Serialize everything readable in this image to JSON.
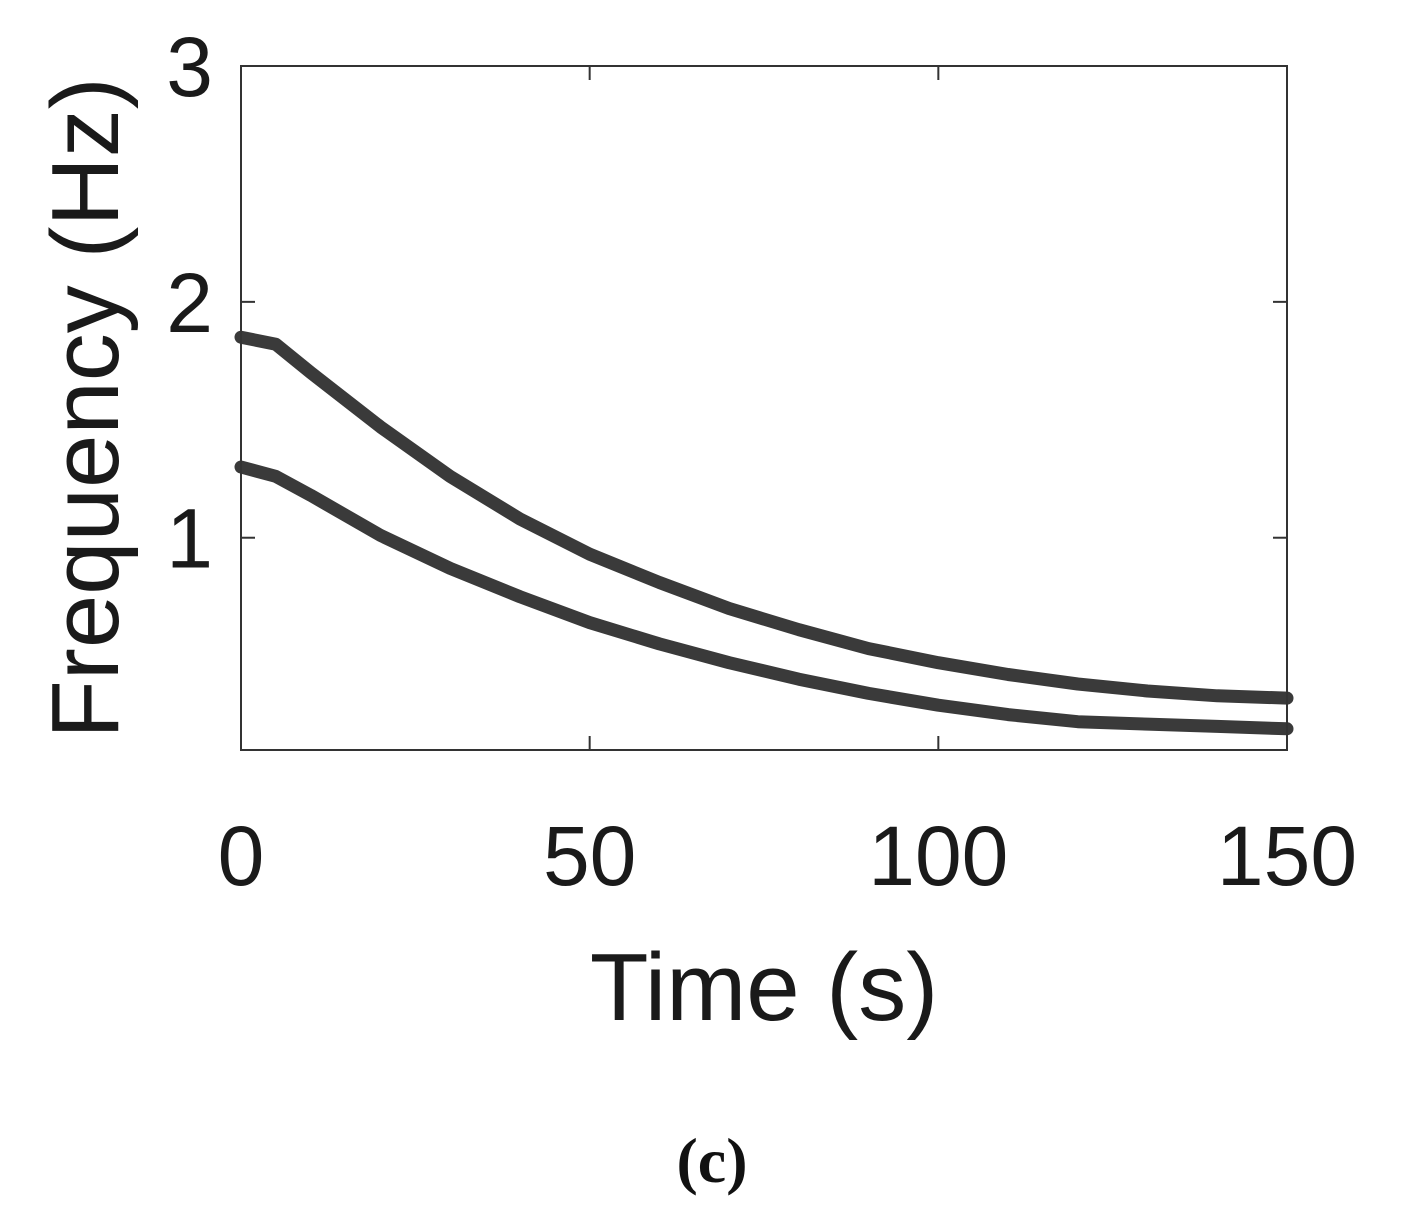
{
  "panel_label": "(c)",
  "chart_data": {
    "type": "line",
    "title": "",
    "xlabel": "Time (s)",
    "ylabel": "Frequency (Hz)",
    "xlim": [
      0,
      150
    ],
    "ylim": [
      0.1,
      3
    ],
    "xticks": [
      0,
      50,
      100,
      150
    ],
    "yticks": [
      1,
      2,
      3
    ],
    "grid": false,
    "series_color": "#3a3a3a",
    "series": [
      {
        "x": [
          0,
          5,
          10,
          20,
          30,
          40,
          50,
          60,
          70,
          80,
          90,
          100,
          110,
          120,
          130,
          140,
          150
        ],
        "y": [
          1.85,
          1.82,
          1.7,
          1.47,
          1.26,
          1.08,
          0.93,
          0.81,
          0.7,
          0.61,
          0.53,
          0.47,
          0.42,
          0.38,
          0.35,
          0.33,
          0.32
        ]
      },
      {
        "x": [
          0,
          5,
          10,
          20,
          30,
          40,
          50,
          60,
          70,
          80,
          90,
          100,
          110,
          120,
          130,
          140,
          150
        ],
        "y": [
          1.3,
          1.26,
          1.18,
          1.01,
          0.87,
          0.75,
          0.64,
          0.55,
          0.47,
          0.4,
          0.34,
          0.29,
          0.25,
          0.22,
          0.21,
          0.2,
          0.19
        ]
      }
    ]
  }
}
